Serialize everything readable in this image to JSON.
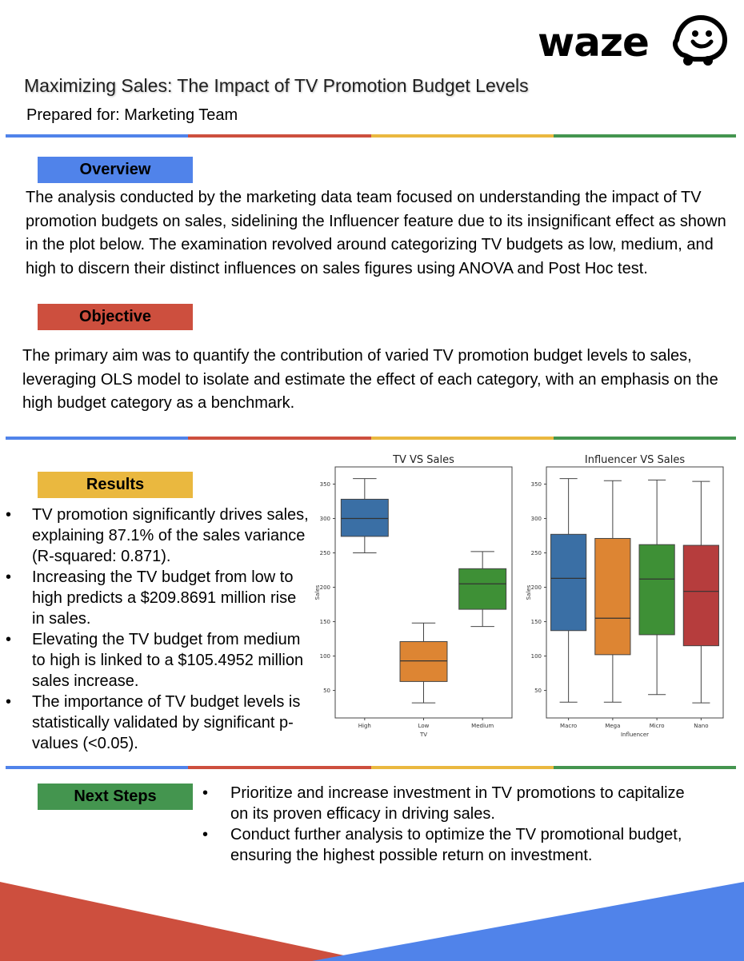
{
  "brand": {
    "name": "waze",
    "logo_icon": "waze-smiley-icon"
  },
  "header": {
    "title": "Maximizing Sales: The Impact of TV Promotion Budget Levels",
    "subtitle": "Prepared for: Marketing Team"
  },
  "colors": {
    "blue": "#5083ea",
    "red": "#cd4f3e",
    "yellow": "#eab83f",
    "green": "#44954f"
  },
  "overview": {
    "label": "Overview",
    "text": "The analysis conducted by the marketing data team focused on understanding the impact of TV promotion budgets on sales, sidelining the Influencer feature due to its insignificant effect as shown in the plot below. The examination revolved around categorizing TV budgets as low, medium, and high to discern their distinct influences on sales figures using ANOVA and Post Hoc test."
  },
  "objective": {
    "label": "Objective",
    "text": "The primary aim was to quantify the contribution of varied TV promotion budget levels to sales, leveraging OLS model to isolate and estimate the effect of each category, with an emphasis on the high budget category as a benchmark."
  },
  "results": {
    "label": "Results",
    "items": [
      "TV promotion significantly drives sales, explaining 87.1% of the sales variance (R-squared: 0.871).",
      "Increasing the TV budget from low to high predicts a $209.8691 million rise in sales.",
      "Elevating the TV budget from medium to high is linked to a $105.4952 million sales increase.",
      "The importance of TV budget levels is statistically validated by significant p-values (<0.05)."
    ]
  },
  "next_steps": {
    "label": "Next Steps",
    "items": [
      "Prioritize and increase investment in TV promotions to capitalize on its proven efficacy in driving sales.",
      "Conduct further analysis to optimize the TV promotional budget, ensuring the highest possible return on investment."
    ]
  },
  "chart_data": [
    {
      "type": "box",
      "title": "TV VS Sales",
      "xlabel": "TV",
      "ylabel": "Sales",
      "ylim": [
        10,
        375
      ],
      "yticks": [
        50,
        100,
        150,
        200,
        250,
        300,
        350
      ],
      "boxes": [
        {
          "category": "High",
          "color": "#3a6fa5",
          "whisker_low": 250,
          "q1": 274,
          "median": 300,
          "q3": 328,
          "whisker_high": 358
        },
        {
          "category": "Low",
          "color": "#dd8533",
          "whisker_low": 32,
          "q1": 63,
          "median": 93,
          "q3": 121,
          "whisker_high": 148
        },
        {
          "category": "Medium",
          "color": "#3e9036",
          "whisker_low": 143,
          "q1": 168,
          "median": 205,
          "q3": 227,
          "whisker_high": 252
        }
      ]
    },
    {
      "type": "box",
      "title": "Influencer VS Sales",
      "xlabel": "Influencer",
      "ylabel": "Sales",
      "ylim": [
        10,
        375
      ],
      "yticks": [
        50,
        100,
        150,
        200,
        250,
        300,
        350
      ],
      "boxes": [
        {
          "category": "Macro",
          "color": "#3a6fa5",
          "whisker_low": 33,
          "q1": 137,
          "median": 213,
          "q3": 277,
          "whisker_high": 358
        },
        {
          "category": "Mega",
          "color": "#dd8533",
          "whisker_low": 33,
          "q1": 102,
          "median": 155,
          "q3": 271,
          "whisker_high": 355
        },
        {
          "category": "Micro",
          "color": "#3e9036",
          "whisker_low": 44,
          "q1": 131,
          "median": 212,
          "q3": 262,
          "whisker_high": 356
        },
        {
          "category": "Nano",
          "color": "#b63d3d",
          "whisker_low": 32,
          "q1": 115,
          "median": 194,
          "q3": 261,
          "whisker_high": 354
        }
      ]
    }
  ]
}
